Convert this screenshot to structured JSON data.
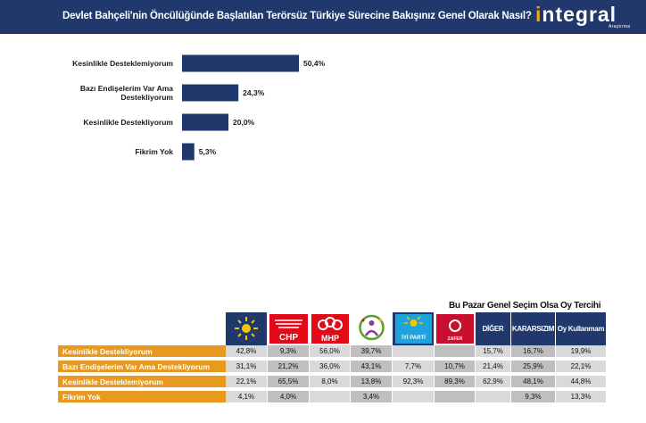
{
  "header": {
    "title": "Devlet Bahçeli'nin Öncülüğünde Başlatılan Terörsüz Türkiye Sürecine Bakışınız Genel Olarak Nasıl?",
    "logo_main": "ntegral",
    "logo_prefix": "i",
    "logo_sub": "Araştırma"
  },
  "chart_data": {
    "type": "bar",
    "orientation": "horizontal",
    "categories": [
      "Kesinlikle Desteklemiyorum",
      "Bazı Endişelerim Var Ama Destekliyorum",
      "Kesinlikle Destekliyorum",
      "Fikrim Yok"
    ],
    "category_lines": [
      [
        "Kesinlikle Desteklemiyorum"
      ],
      [
        "Bazı Endişelerim Var Ama",
        "Destekliyorum"
      ],
      [
        "Kesinlikle Destekliyorum"
      ],
      [
        "Fikrim Yok"
      ]
    ],
    "values": [
      50.4,
      24.3,
      20.0,
      5.3
    ],
    "value_labels": [
      "50,4%",
      "24,3%",
      "20,0%",
      "5,3%"
    ],
    "bar_color": "#20386c",
    "grid": false
  },
  "table": {
    "title": "Bu Pazar Genel Seçim Olsa Oy Tercihi",
    "columns": [
      {
        "name": "AK Parti",
        "icon": "akp-logo-icon",
        "label": ""
      },
      {
        "name": "CHP",
        "icon": "chp-logo-icon",
        "label": "CHP"
      },
      {
        "name": "MHP",
        "icon": "mhp-logo-icon",
        "label": "MHP"
      },
      {
        "name": "DEM",
        "icon": "dem-logo-icon",
        "label": ""
      },
      {
        "name": "İYİ Parti",
        "icon": "iyi-logo-icon",
        "label": "İYİ PARTİ"
      },
      {
        "name": "Zafer Partisi",
        "icon": "zafer-logo-icon",
        "label": "ZAFER"
      },
      {
        "name": "DİĞER",
        "icon": "",
        "label": "DİĞER"
      },
      {
        "name": "KARARSIZIM",
        "icon": "",
        "label": "KARARSIZIM"
      },
      {
        "name": "Oy Kullanmam",
        "icon": "",
        "label": "Oy Kullanmam"
      }
    ],
    "rows": [
      {
        "label": "Kesinlikle Destekliyorum",
        "values": [
          "42,8%",
          "9,3%",
          "56,0%",
          "39,7%",
          "",
          "",
          "15,7%",
          "16,7%",
          "19,9%"
        ]
      },
      {
        "label": "Bazı Endişelerim Var Ama Destekliyorum",
        "values": [
          "31,1%",
          "21,2%",
          "36,0%",
          "43,1%",
          "7,7%",
          "10,7%",
          "21,4%",
          "25,9%",
          "22,1%"
        ]
      },
      {
        "label": "Kesinlikle Desteklemiyorum",
        "values": [
          "22,1%",
          "65,5%",
          "8,0%",
          "13,8%",
          "92,3%",
          "89,3%",
          "62,9%",
          "48,1%",
          "44,8%"
        ]
      },
      {
        "label": "Fikrim Yok",
        "values": [
          "4,1%",
          "4,0%",
          "",
          "3,4%",
          "",
          "",
          "",
          "9,3%",
          "13,3%"
        ]
      }
    ]
  }
}
